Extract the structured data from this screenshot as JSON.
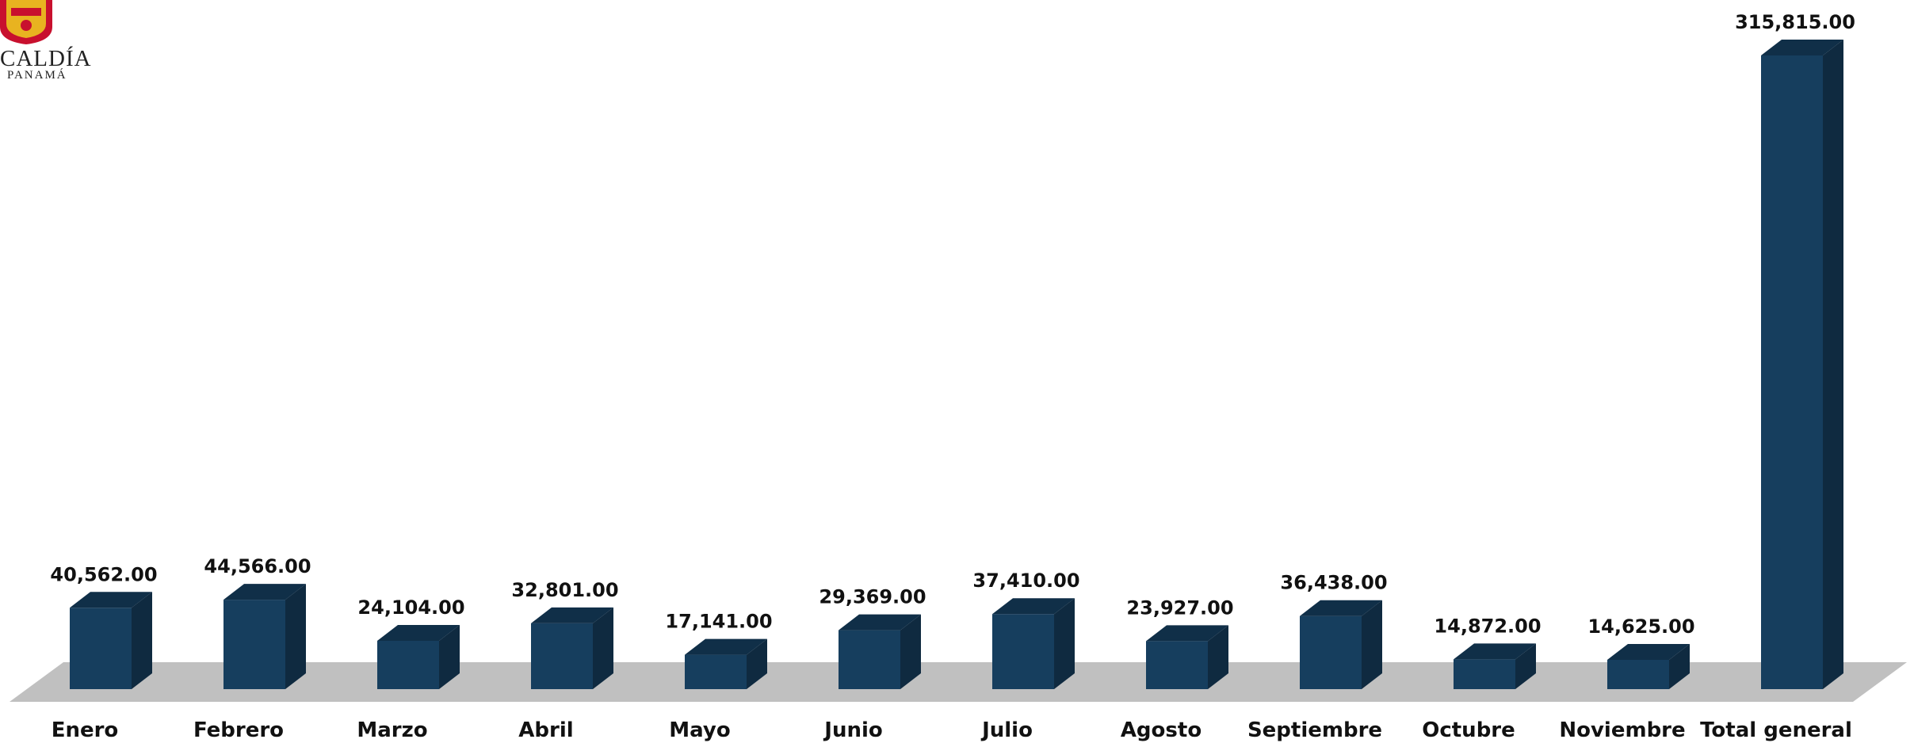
{
  "logo": {
    "text_main": "CALDÍA",
    "text_sub": "PANAMÁ",
    "colors": {
      "shield_red": "#c8102e",
      "shield_gold": "#e8b320"
    }
  },
  "chart_data": {
    "type": "bar",
    "style": "3d-column",
    "categories": [
      "Enero",
      "Febrero",
      "Marzo",
      "Abril",
      "Mayo",
      "Junio",
      "Julio",
      "Agosto",
      "Septiembre",
      "Octubre",
      "Noviembre",
      "Total general"
    ],
    "values": [
      40562,
      44566,
      24104,
      32801,
      17141,
      29369,
      37410,
      23927,
      36438,
      14872,
      14625,
      315815
    ],
    "value_labels": [
      "40,562.00",
      "44,566.00",
      "24,104.00",
      "32,801.00",
      "17,141.00",
      "29,369.00",
      "37,410.00",
      "23,927.00",
      "36,438.00",
      "14,872.00",
      "14,625.00",
      "315,815.00"
    ],
    "title": "",
    "xlabel": "",
    "ylabel": "",
    "ylim": [
      0,
      315815
    ],
    "grid": false,
    "legend": "none",
    "colors": {
      "bar_front": "#163e5e",
      "bar_top": "#102f48",
      "bar_side": "#0f2a40",
      "floor": "#c0c0c0"
    }
  }
}
